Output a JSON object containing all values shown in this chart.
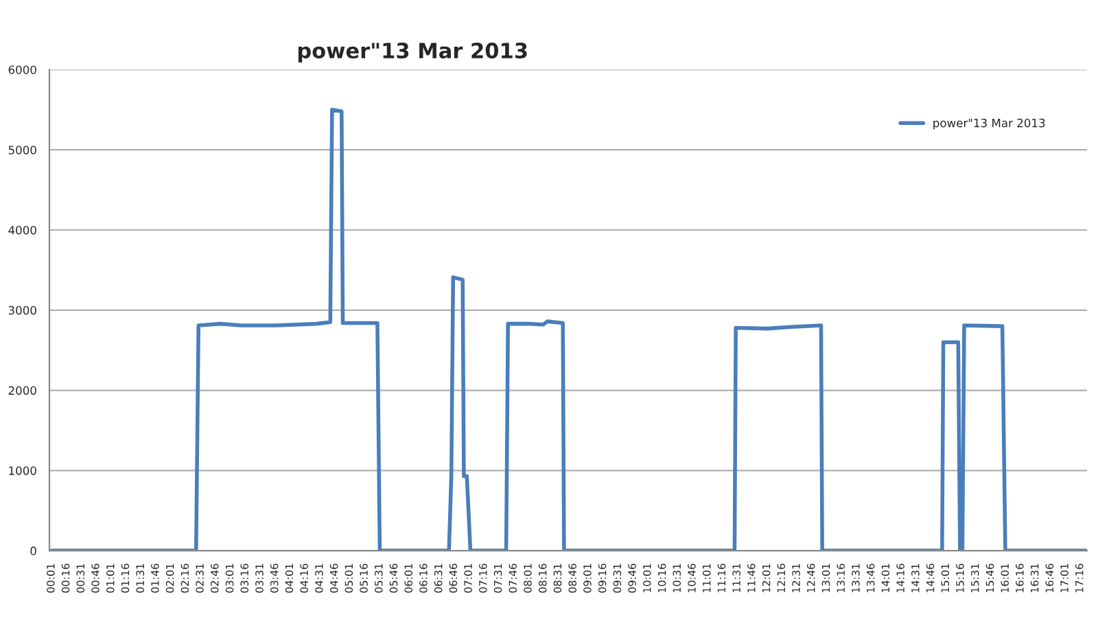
{
  "chart_data": {
    "type": "line",
    "title": "power\"13 Mar 2013",
    "legend": "top right",
    "grid": "y",
    "marker": "none",
    "line_style": "solid",
    "xlim": [
      -0.02,
      17.38
    ],
    "ylim": [
      0,
      6000
    ],
    "yticks": [
      0,
      1000,
      2000,
      3000,
      4000,
      5000,
      6000
    ],
    "xticks": [
      {
        "value": 0.0167,
        "label": "00:01"
      },
      {
        "value": 0.2667,
        "label": "00:16"
      },
      {
        "value": 0.5167,
        "label": "00:31"
      },
      {
        "value": 0.7667,
        "label": "00:46"
      },
      {
        "value": 1.0167,
        "label": "01:01"
      },
      {
        "value": 1.2667,
        "label": "01:16"
      },
      {
        "value": 1.5167,
        "label": "01:31"
      },
      {
        "value": 1.7667,
        "label": "01:46"
      },
      {
        "value": 2.0167,
        "label": "02:01"
      },
      {
        "value": 2.2667,
        "label": "02:16"
      },
      {
        "value": 2.5167,
        "label": "02:31"
      },
      {
        "value": 2.7667,
        "label": "02:46"
      },
      {
        "value": 3.0167,
        "label": "03:01"
      },
      {
        "value": 3.2667,
        "label": "03:16"
      },
      {
        "value": 3.5167,
        "label": "03:31"
      },
      {
        "value": 3.7667,
        "label": "03:46"
      },
      {
        "value": 4.0167,
        "label": "04:01"
      },
      {
        "value": 4.2667,
        "label": "04:16"
      },
      {
        "value": 4.5167,
        "label": "04:31"
      },
      {
        "value": 4.7667,
        "label": "04:46"
      },
      {
        "value": 5.0167,
        "label": "05:01"
      },
      {
        "value": 5.2667,
        "label": "05:16"
      },
      {
        "value": 5.5167,
        "label": "05:31"
      },
      {
        "value": 5.7667,
        "label": "05:46"
      },
      {
        "value": 6.0167,
        "label": "06:01"
      },
      {
        "value": 6.2667,
        "label": "06:16"
      },
      {
        "value": 6.5167,
        "label": "06:31"
      },
      {
        "value": 6.7667,
        "label": "06:46"
      },
      {
        "value": 7.0167,
        "label": "07:01"
      },
      {
        "value": 7.2667,
        "label": "07:16"
      },
      {
        "value": 7.5167,
        "label": "07:31"
      },
      {
        "value": 7.7667,
        "label": "07:46"
      },
      {
        "value": 8.0167,
        "label": "08:01"
      },
      {
        "value": 8.2667,
        "label": "08:16"
      },
      {
        "value": 8.5167,
        "label": "08:31"
      },
      {
        "value": 8.7667,
        "label": "08:46"
      },
      {
        "value": 9.0167,
        "label": "09:01"
      },
      {
        "value": 9.2667,
        "label": "09:16"
      },
      {
        "value": 9.5167,
        "label": "09:31"
      },
      {
        "value": 9.7667,
        "label": "09:46"
      },
      {
        "value": 10.0167,
        "label": "10:01"
      },
      {
        "value": 10.2667,
        "label": "10:16"
      },
      {
        "value": 10.5167,
        "label": "10:31"
      },
      {
        "value": 10.7667,
        "label": "10:46"
      },
      {
        "value": 11.0167,
        "label": "11:01"
      },
      {
        "value": 11.2667,
        "label": "11:16"
      },
      {
        "value": 11.5167,
        "label": "11:31"
      },
      {
        "value": 11.7667,
        "label": "11:46"
      },
      {
        "value": 12.0167,
        "label": "12:01"
      },
      {
        "value": 12.2667,
        "label": "12:16"
      },
      {
        "value": 12.5167,
        "label": "12:31"
      },
      {
        "value": 12.7667,
        "label": "12:46"
      },
      {
        "value": 13.0167,
        "label": "13:01"
      },
      {
        "value": 13.2667,
        "label": "13:16"
      },
      {
        "value": 13.5167,
        "label": "13:31"
      },
      {
        "value": 13.7667,
        "label": "13:46"
      },
      {
        "value": 14.0167,
        "label": "14:01"
      },
      {
        "value": 14.2667,
        "label": "14:16"
      },
      {
        "value": 14.5167,
        "label": "14:31"
      },
      {
        "value": 14.7667,
        "label": "14:46"
      },
      {
        "value": 15.0167,
        "label": "15:01"
      },
      {
        "value": 15.2667,
        "label": "15:16"
      },
      {
        "value": 15.5167,
        "label": "15:31"
      },
      {
        "value": 15.7667,
        "label": "15:46"
      },
      {
        "value": 16.0167,
        "label": "16:01"
      },
      {
        "value": 16.2667,
        "label": "16:16"
      },
      {
        "value": 16.5167,
        "label": "16:31"
      },
      {
        "value": 16.7667,
        "label": "16:46"
      },
      {
        "value": 17.0167,
        "label": "17:01"
      },
      {
        "value": 17.2667,
        "label": "17:16"
      }
    ],
    "series": [
      {
        "name": "power\"13 Mar 2013",
        "color": "#4a7ebb",
        "x": [
          0.0167,
          2.44,
          2.48,
          2.85,
          3.2,
          3.77,
          4.46,
          4.69,
          4.72,
          4.88,
          4.9,
          4.92,
          5.2,
          5.48,
          5.52,
          6.68,
          6.72,
          6.75,
          6.91,
          6.93,
          6.98,
          7.04,
          7.64,
          7.67,
          8.03,
          8.26,
          8.33,
          8.59,
          8.61,
          11.47,
          11.49,
          12.02,
          12.41,
          12.92,
          12.94,
          14.95,
          14.97,
          15.22,
          15.25,
          15.29,
          15.32,
          15.96,
          16.01,
          17.37
        ],
        "values": [
          0,
          0,
          2810,
          2830,
          2810,
          2810,
          2830,
          2850,
          5500,
          5480,
          2840,
          2840,
          2840,
          2840,
          0,
          0,
          930,
          3410,
          3380,
          930,
          930,
          0,
          0,
          2830,
          2830,
          2820,
          2860,
          2840,
          0,
          0,
          2780,
          2770,
          2790,
          2810,
          0,
          0,
          2600,
          2600,
          0,
          0,
          2810,
          2800,
          0,
          0
        ]
      }
    ]
  }
}
